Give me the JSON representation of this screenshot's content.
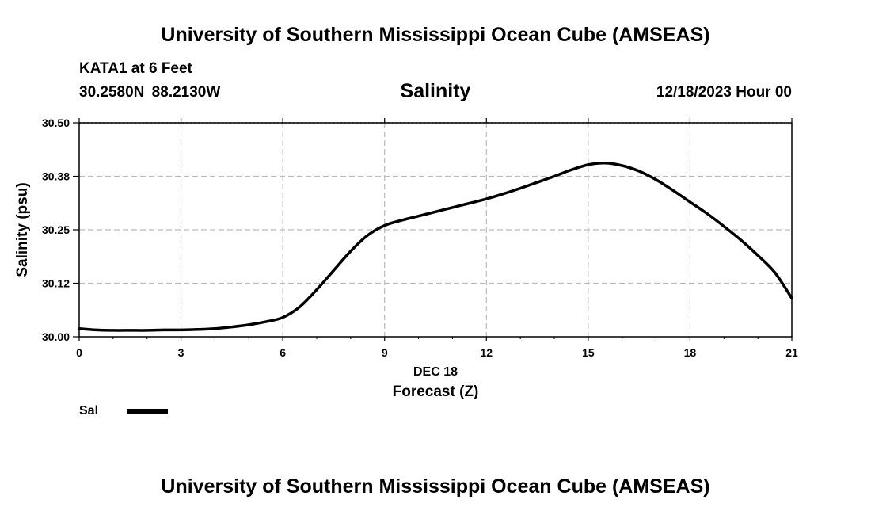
{
  "header": {
    "title": "University of Southern Mississippi Ocean Cube (AMSEAS)",
    "station": "KATA1 at 6 Feet",
    "coords": "30.2580N 88.2130W",
    "chart_title": "Salinity",
    "datetime": "12/18/2023 Hour 00"
  },
  "footer": {
    "title": "University of Southern Mississippi Ocean Cube (AMSEAS)"
  },
  "legend": {
    "label": "Sal",
    "color": "#000000"
  },
  "chart_data": {
    "type": "line",
    "title": "Salinity",
    "xlabel": "Forecast (Z)",
    "xsublabel": "DEC 18",
    "ylabel": "Salinity (psu)",
    "xlim": [
      0,
      21
    ],
    "ylim": [
      30.0,
      30.5
    ],
    "xticks": [
      0,
      3,
      6,
      9,
      12,
      15,
      18,
      21
    ],
    "xtick_labels": [
      "0",
      "3",
      "6",
      "9",
      "12",
      "15",
      "18",
      "21"
    ],
    "yticks": [
      30.0,
      30.125,
      30.25,
      30.375,
      30.5
    ],
    "ytick_labels": [
      "30.00",
      "30.12",
      "30.25",
      "30.38",
      "30.50"
    ],
    "grid": true,
    "series": [
      {
        "name": "Sal",
        "x": [
          0,
          0.5,
          1,
          1.5,
          2,
          2.5,
          3,
          3.5,
          4,
          4.5,
          5,
          5.5,
          6,
          6.5,
          7,
          7.5,
          8,
          8.5,
          9,
          9.5,
          10,
          10.5,
          11,
          11.5,
          12,
          12.5,
          13,
          13.5,
          14,
          14.5,
          15,
          15.5,
          16,
          16.5,
          17,
          17.5,
          18,
          18.5,
          19,
          19.5,
          20,
          20.5,
          21
        ],
        "values": [
          30.019,
          30.016,
          30.015,
          30.015,
          30.015,
          30.016,
          30.016,
          30.017,
          30.019,
          30.023,
          30.028,
          30.035,
          30.045,
          30.07,
          30.11,
          30.155,
          30.2,
          30.237,
          30.26,
          30.272,
          30.282,
          30.292,
          30.302,
          30.312,
          30.322,
          30.334,
          30.347,
          30.361,
          30.375,
          30.39,
          30.402,
          30.406,
          30.4,
          30.387,
          30.367,
          30.342,
          30.315,
          30.288,
          30.258,
          30.226,
          30.19,
          30.15,
          30.09
        ]
      }
    ]
  }
}
